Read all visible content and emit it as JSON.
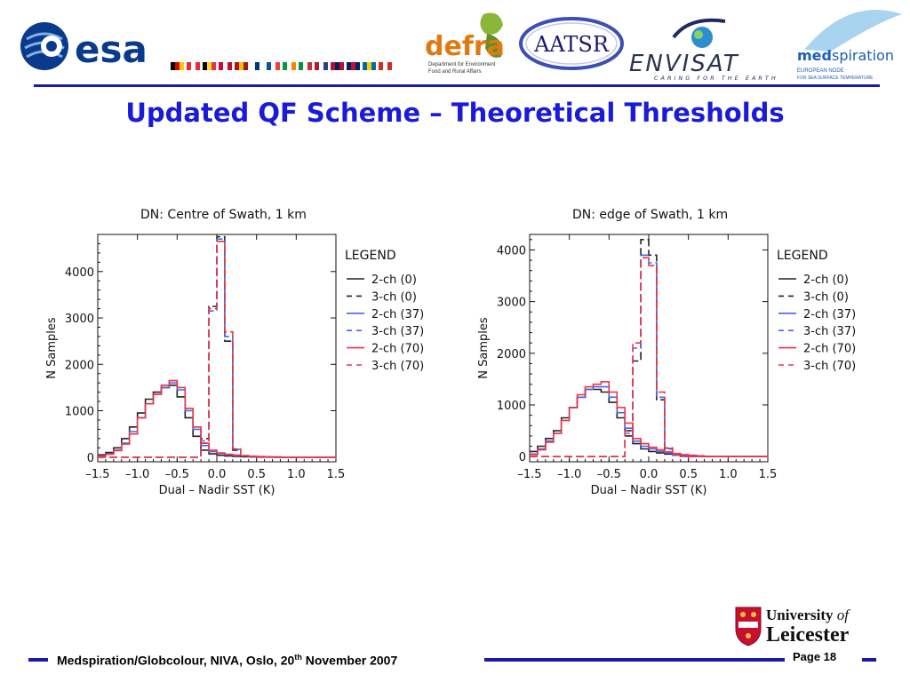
{
  "header": {
    "logos": {
      "esa": "esa",
      "defra": "defra",
      "defra_sub1": "Department for Environment",
      "defra_sub2": "Food and Rural Affairs",
      "aatsr": "AATSR",
      "envisat": "ENVISAT",
      "envisat_tagline": "CARING FOR THE EARTH",
      "medspiration_a": "med",
      "medspiration_b": "spiration",
      "medspiration_sub1": "EUROPEAN NODE",
      "medspiration_sub2": "FOR SEA SURFACE TEMPERATURE"
    },
    "flag_colors": [
      [
        "#000000",
        "#dd0000",
        "#ffce00"
      ],
      [
        "#ed2939",
        "#ffffff",
        "#ed2939"
      ],
      [
        "#000000",
        "#fdda24",
        "#ef3340"
      ],
      [
        "#c60c30",
        "#ffffff",
        "#c60c30"
      ],
      [
        "#aa151b",
        "#f1bf00",
        "#aa151b"
      ],
      [
        "#ffffff",
        "#003580",
        "#ffffff"
      ],
      [
        "#0055a4",
        "#ffffff",
        "#ef4135"
      ],
      [
        "#009a44",
        "#ffffff",
        "#ff8200"
      ],
      [
        "#009246",
        "#ffffff",
        "#ce2b37"
      ],
      [
        "#ae1c28",
        "#ffffff",
        "#21468b"
      ],
      [
        "#ba0c2f",
        "#00205b",
        "#ba0c2f"
      ],
      [
        "#012169",
        "#c8102e",
        "#012169"
      ],
      [
        "#006aa7",
        "#fecc02",
        "#006aa7"
      ],
      [
        "#d52b1e",
        "#ffffff",
        "#d52b1e"
      ]
    ]
  },
  "slide_title": "Updated QF Scheme – Theoretical Thresholds",
  "chart_data": [
    {
      "type": "line",
      "title": "DN: Centre of Swath, 1 km",
      "xlabel": "Dual – Nadir SST (K)",
      "ylabel": "N Samples",
      "xlim": [
        -1.5,
        1.5
      ],
      "ylim": [
        -100,
        4800
      ],
      "xticks": [
        "–1.5",
        "–1.0",
        "–0.5",
        "0.0",
        "0.5",
        "1.0",
        "1.5"
      ],
      "yticks": [
        "0",
        "1000",
        "2000",
        "3000",
        "4000"
      ],
      "legend_title": "LEGEND",
      "legend_position": "right",
      "bin_start": -1.5,
      "bin_width": 0.1,
      "series": [
        {
          "name": "2-ch (0)",
          "color": "#222222",
          "dash": false,
          "values": [
            50,
            100,
            200,
            400,
            650,
            950,
            1250,
            1400,
            1500,
            1550,
            1300,
            850,
            450,
            150,
            70,
            40,
            25,
            15,
            10,
            5,
            5,
            5,
            0,
            0,
            0,
            0,
            0,
            0,
            0,
            0
          ]
        },
        {
          "name": "3-ch (0)",
          "color": "#222222",
          "dash": true,
          "values": [
            0,
            0,
            0,
            0,
            0,
            0,
            0,
            0,
            0,
            0,
            0,
            0,
            0,
            400,
            3250,
            4750,
            2500,
            150,
            25,
            5,
            0,
            0,
            0,
            0,
            0,
            0,
            0,
            0,
            0,
            0
          ]
        },
        {
          "name": "2-ch (37)",
          "color": "#4466ee",
          "dash": false,
          "values": [
            30,
            70,
            150,
            300,
            550,
            850,
            1150,
            1350,
            1500,
            1600,
            1450,
            1000,
            600,
            250,
            120,
            80,
            50,
            35,
            25,
            15,
            10,
            5,
            5,
            0,
            0,
            0,
            0,
            0,
            0,
            0
          ]
        },
        {
          "name": "3-ch (37)",
          "color": "#4466ee",
          "dash": true,
          "values": [
            0,
            0,
            0,
            0,
            0,
            0,
            0,
            0,
            0,
            0,
            0,
            0,
            0,
            350,
            3150,
            4700,
            2600,
            170,
            30,
            5,
            0,
            0,
            0,
            0,
            0,
            0,
            0,
            0,
            0,
            0
          ]
        },
        {
          "name": "2-ch (70)",
          "color": "#ee3344",
          "dash": false,
          "values": [
            20,
            60,
            140,
            280,
            500,
            850,
            1150,
            1350,
            1550,
            1650,
            1500,
            1050,
            650,
            300,
            150,
            90,
            60,
            45,
            30,
            20,
            12,
            8,
            5,
            0,
            0,
            0,
            0,
            0,
            0,
            0
          ]
        },
        {
          "name": "3-ch (70)",
          "color": "#ee3344",
          "dash": true,
          "values": [
            0,
            0,
            0,
            0,
            0,
            0,
            0,
            0,
            0,
            0,
            0,
            0,
            0,
            300,
            3200,
            4650,
            2700,
            180,
            30,
            5,
            0,
            0,
            0,
            0,
            0,
            0,
            0,
            0,
            0,
            0
          ]
        }
      ]
    },
    {
      "type": "line",
      "title": "DN: edge of Swath, 1 km",
      "xlabel": "Dual – Nadir SST (K)",
      "ylabel": "N Samples",
      "xlim": [
        -1.5,
        1.5
      ],
      "ylim": [
        -100,
        4300
      ],
      "xticks": [
        "–1.5",
        "–1.0",
        "–0.5",
        "0.0",
        "0.5",
        "1.0",
        "1.5"
      ],
      "yticks": [
        "0",
        "1000",
        "2000",
        "3000",
        "4000"
      ],
      "legend_title": "LEGEND",
      "legend_position": "right",
      "bin_start": -1.5,
      "bin_width": 0.1,
      "series": [
        {
          "name": "2-ch (0)",
          "color": "#222222",
          "dash": false,
          "values": [
            100,
            200,
            350,
            500,
            750,
            950,
            1150,
            1300,
            1300,
            1250,
            1050,
            750,
            500,
            250,
            150,
            100,
            70,
            50,
            30,
            20,
            10,
            5,
            0,
            0,
            0,
            0,
            0,
            0,
            0,
            0
          ]
        },
        {
          "name": "3-ch (0)",
          "color": "#222222",
          "dash": true,
          "values": [
            0,
            0,
            0,
            0,
            0,
            0,
            0,
            0,
            0,
            0,
            0,
            0,
            400,
            1850,
            4200,
            3900,
            1100,
            150,
            30,
            5,
            0,
            0,
            0,
            0,
            0,
            0,
            0,
            0,
            0,
            0
          ]
        },
        {
          "name": "2-ch (37)",
          "color": "#4466ee",
          "dash": false,
          "values": [
            50,
            150,
            300,
            450,
            700,
            950,
            1150,
            1300,
            1350,
            1350,
            1150,
            850,
            550,
            300,
            200,
            150,
            100,
            70,
            50,
            30,
            20,
            10,
            5,
            0,
            0,
            0,
            0,
            0,
            0,
            0
          ]
        },
        {
          "name": "3-ch (37)",
          "color": "#4466ee",
          "dash": true,
          "values": [
            0,
            0,
            0,
            0,
            0,
            0,
            0,
            0,
            0,
            0,
            0,
            0,
            450,
            2100,
            3900,
            3750,
            1150,
            160,
            30,
            5,
            0,
            0,
            0,
            0,
            0,
            0,
            0,
            0,
            0,
            0
          ]
        },
        {
          "name": "2-ch (70)",
          "color": "#ee3344",
          "dash": false,
          "values": [
            40,
            130,
            280,
            450,
            700,
            950,
            1200,
            1350,
            1400,
            1450,
            1250,
            950,
            650,
            350,
            250,
            180,
            130,
            90,
            60,
            40,
            25,
            15,
            5,
            0,
            0,
            0,
            0,
            0,
            0,
            0
          ]
        },
        {
          "name": "3-ch (70)",
          "color": "#ee3344",
          "dash": true,
          "values": [
            0,
            0,
            0,
            0,
            0,
            0,
            0,
            0,
            0,
            0,
            0,
            0,
            500,
            2200,
            3850,
            3700,
            1250,
            170,
            30,
            5,
            0,
            0,
            0,
            0,
            0,
            0,
            0,
            0,
            0,
            0
          ]
        }
      ]
    }
  ],
  "footer": {
    "text_main": "Medspiration/Globcolour, NIVA, Oslo, 20",
    "text_sup": "th",
    "text_end": " November 2007",
    "page_label": "Page 18",
    "university_line1": "University",
    "university_of": "of",
    "university_line2": "Leicester"
  }
}
